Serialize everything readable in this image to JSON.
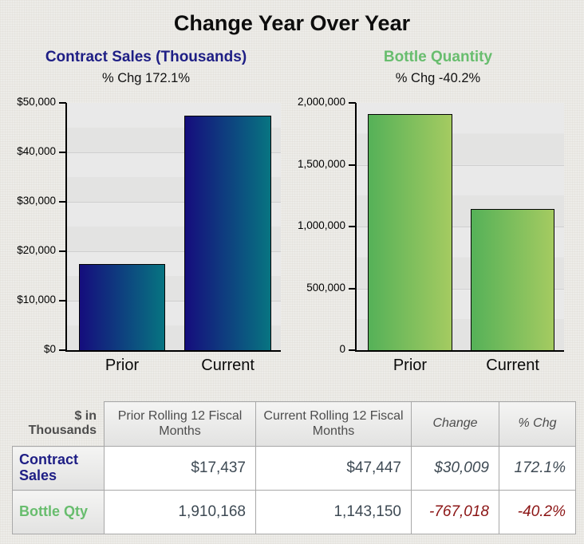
{
  "page_title": "Change Year Over Year",
  "colors": {
    "page_bg": "#edece8",
    "plot_bg_light": "#e9e9e9",
    "plot_bg_dark": "#e3e3e2",
    "gridline": "#cfcfcf",
    "axis": "#000000",
    "value_text": "#3e4a54",
    "header_text": "#4d4d4d",
    "negative_text": "#8b1414",
    "contract_sales_accent": "#1e1e85",
    "bottle_qty_accent": "#68bd6e"
  },
  "chart_data": [
    {
      "type": "bar",
      "title": "Contract Sales (Thousands)",
      "title_color": "#1e1e85",
      "subtitle": "% Chg 172.1%",
      "pct_chg": 172.1,
      "categories": [
        "Prior",
        "Current"
      ],
      "values": [
        17437,
        47447
      ],
      "ylim": [
        0,
        50000
      ],
      "yticks": [
        0,
        10000,
        20000,
        30000,
        40000,
        50000
      ],
      "ytick_labels": [
        "$0",
        "$10,000",
        "$20,000",
        "$30,000",
        "$40,000",
        "$50,000"
      ],
      "bar_gradient": [
        "#150d7d",
        "#077481"
      ],
      "legend": "none",
      "grid": "horizontal"
    },
    {
      "type": "bar",
      "title": "Bottle Quantity",
      "title_color": "#68bd6e",
      "subtitle": "% Chg -40.2%",
      "pct_chg": -40.2,
      "categories": [
        "Prior",
        "Current"
      ],
      "values": [
        1910168,
        1143150
      ],
      "ylim": [
        0,
        2000000
      ],
      "yticks": [
        0,
        500000,
        1000000,
        1500000,
        2000000
      ],
      "ytick_labels": [
        "0",
        "500,000",
        "1,000,000",
        "1,500,000",
        "2,000,000"
      ],
      "bar_gradient": [
        "#55b158",
        "#a5cb61"
      ],
      "legend": "none",
      "grid": "horizontal"
    }
  ],
  "table": {
    "corner_label": "$ in Thousands",
    "column_headers": [
      {
        "label": "Prior Rolling 12 Fiscal Months",
        "italic": false
      },
      {
        "label": "Current Rolling 12 Fiscal Months",
        "italic": false
      },
      {
        "label": "Change",
        "italic": true
      },
      {
        "label": "% Chg",
        "italic": true
      }
    ],
    "rows": [
      {
        "label": "Contract Sales",
        "label_color": "#1e1e85",
        "cells": [
          {
            "text": "$17,437",
            "italic": false,
            "negative": false
          },
          {
            "text": "$47,447",
            "italic": false,
            "negative": false
          },
          {
            "text": "$30,009",
            "italic": true,
            "negative": false
          },
          {
            "text": "172.1%",
            "italic": true,
            "negative": false
          }
        ]
      },
      {
        "label": "Bottle Qty",
        "label_color": "#68bd6e",
        "cells": [
          {
            "text": "1,910,168",
            "italic": false,
            "negative": false
          },
          {
            "text": "1,143,150",
            "italic": false,
            "negative": false
          },
          {
            "text": "-767,018",
            "italic": true,
            "negative": true
          },
          {
            "text": "-40.2%",
            "italic": true,
            "negative": true
          }
        ]
      }
    ]
  }
}
